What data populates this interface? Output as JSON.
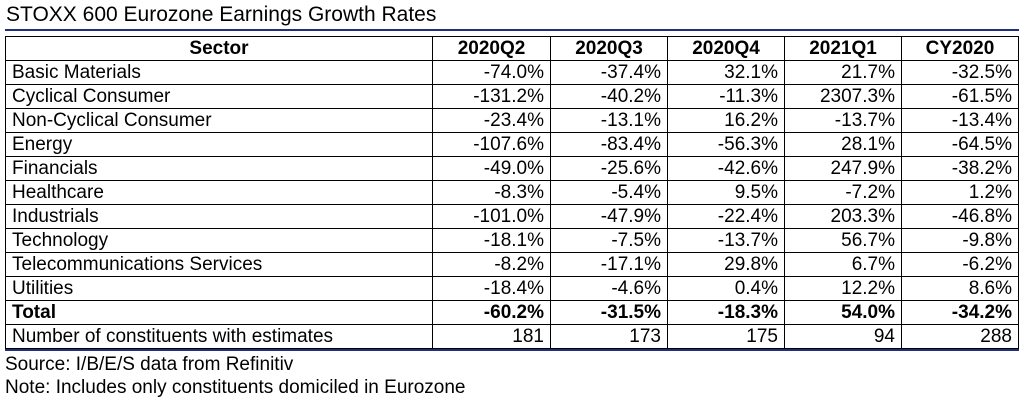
{
  "title": "STOXX 600 Eurozone Earnings Growth Rates",
  "source": "Source: I/B/E/S data from Refinitiv",
  "note": "Note: Includes only constituents domiciled in Eurozone",
  "accent_color": "#1f2f7a",
  "chart_data": {
    "type": "table",
    "columns": [
      "Sector",
      "2020Q2",
      "2020Q3",
      "2020Q4",
      "2021Q1",
      "CY2020"
    ],
    "rows": [
      [
        "Basic Materials",
        "-74.0%",
        "-37.4%",
        "32.1%",
        "21.7%",
        "-32.5%"
      ],
      [
        "Cyclical Consumer",
        "-131.2%",
        "-40.2%",
        "-11.3%",
        "2307.3%",
        "-61.5%"
      ],
      [
        "Non-Cyclical Consumer",
        "-23.4%",
        "-13.1%",
        "16.2%",
        "-13.7%",
        "-13.4%"
      ],
      [
        "Energy",
        "-107.6%",
        "-83.4%",
        "-56.3%",
        "28.1%",
        "-64.5%"
      ],
      [
        "Financials",
        "-49.0%",
        "-25.6%",
        "-42.6%",
        "247.9%",
        "-38.2%"
      ],
      [
        "Healthcare",
        "-8.3%",
        "-5.4%",
        "9.5%",
        "-7.2%",
        "1.2%"
      ],
      [
        "Industrials",
        "-101.0%",
        "-47.9%",
        "-22.4%",
        "203.3%",
        "-46.8%"
      ],
      [
        "Technology",
        "-18.1%",
        "-7.5%",
        "-13.7%",
        "56.7%",
        "-9.8%"
      ],
      [
        "Telecommunications Services",
        "-8.2%",
        "-17.1%",
        "29.8%",
        "6.7%",
        "-6.2%"
      ],
      [
        "Utilities",
        "-18.4%",
        "-4.6%",
        "0.4%",
        "12.2%",
        "8.6%"
      ],
      [
        "Total",
        "-60.2%",
        "-31.5%",
        "-18.3%",
        "54.0%",
        "-34.2%"
      ],
      [
        "Number of constituents with estimates",
        "181",
        "173",
        "175",
        "94",
        "288"
      ]
    ],
    "bold_rows": [
      "Total"
    ]
  }
}
